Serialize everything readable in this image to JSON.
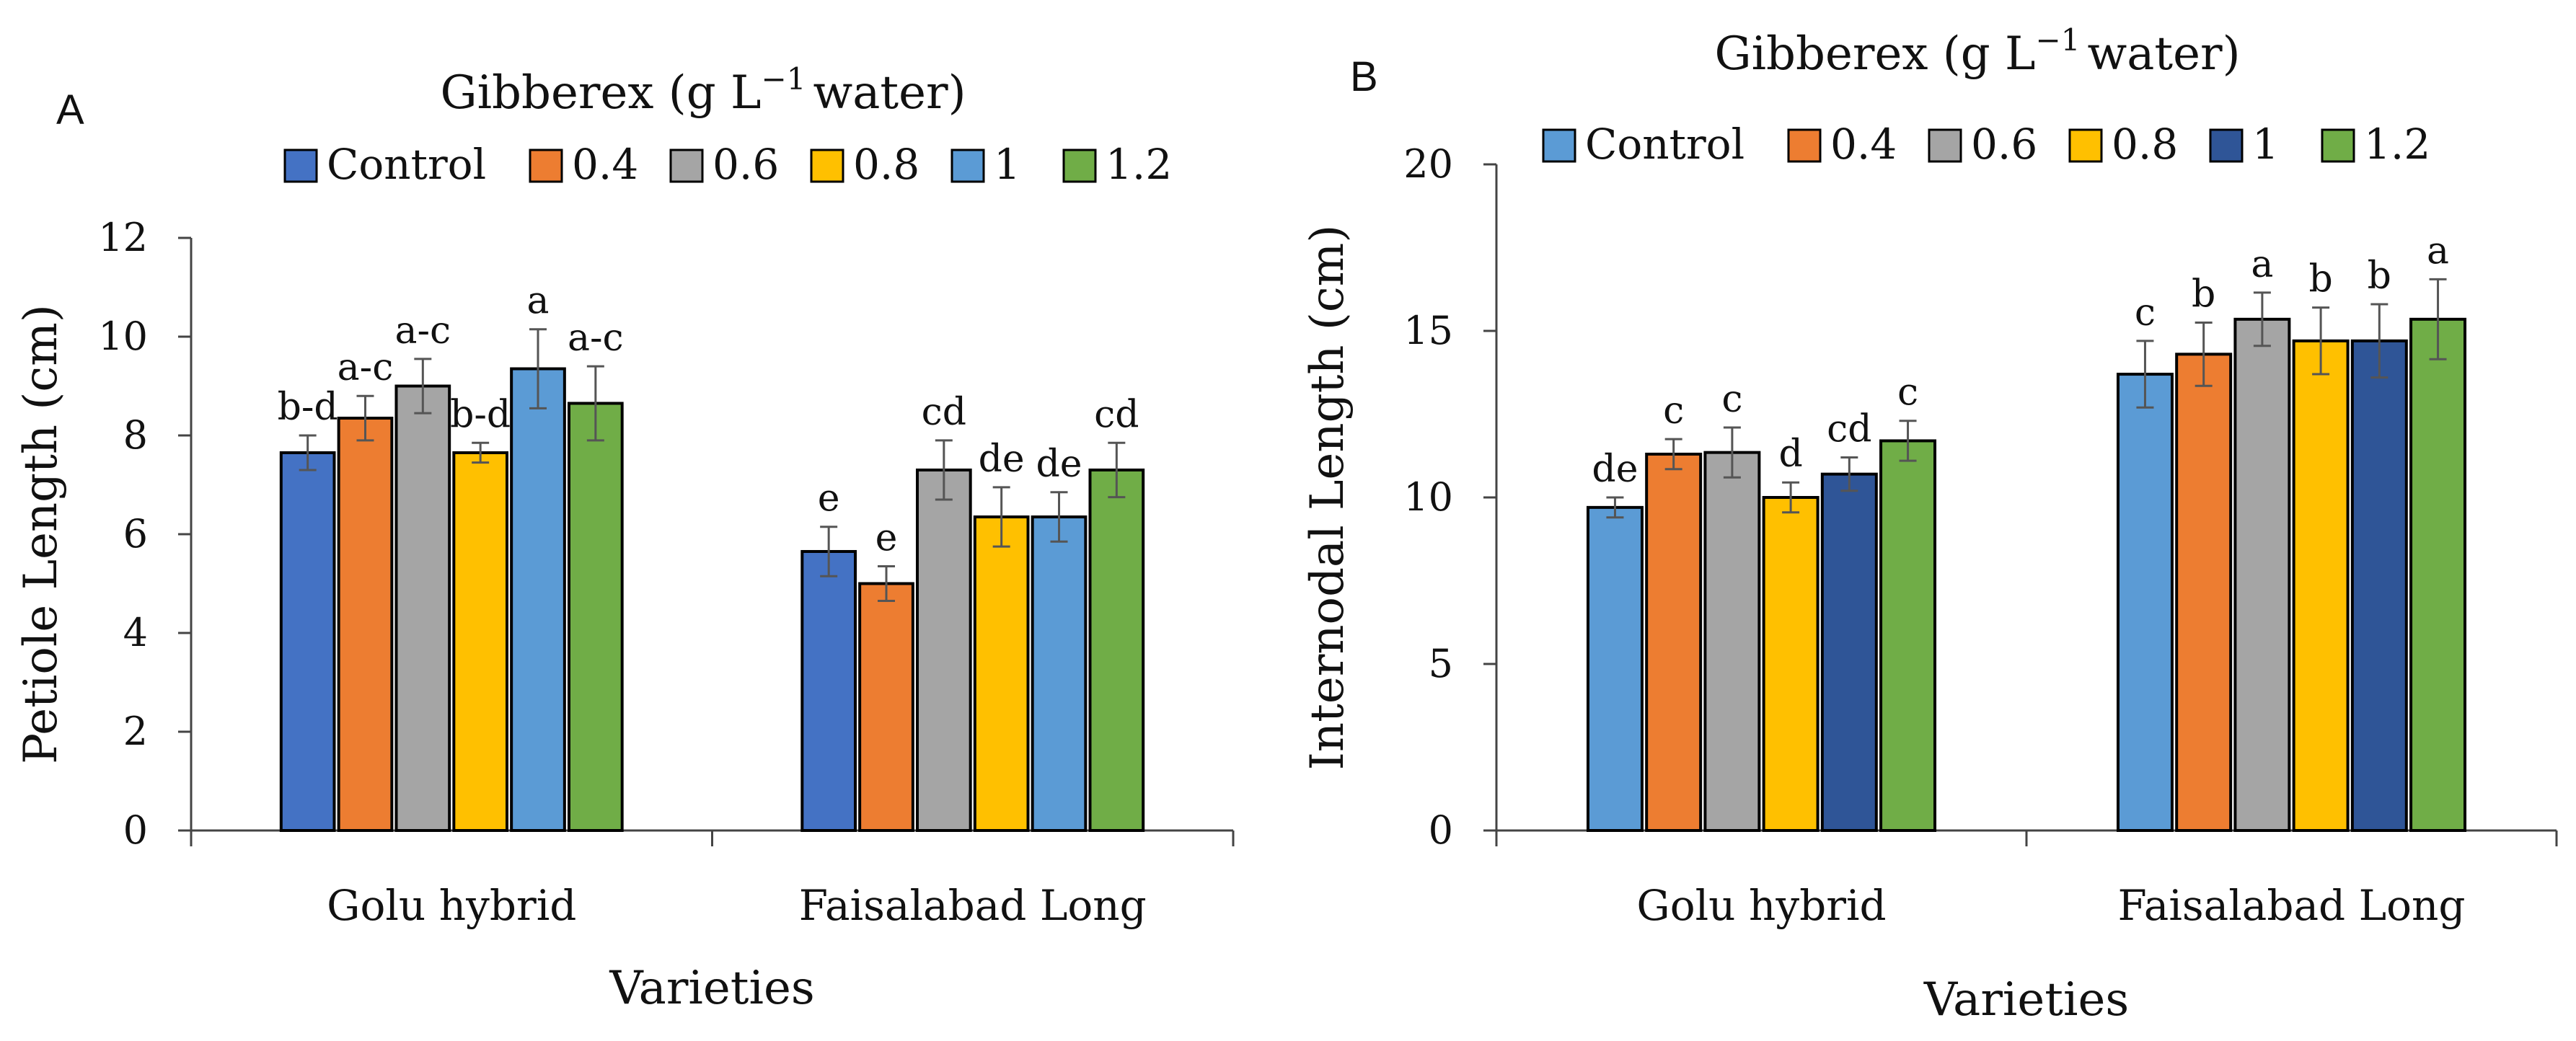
{
  "chart_data": [
    {
      "type": "bar",
      "panel_label": "A",
      "title": "Gibberex (g L",
      "title_sup": "−1",
      "title_suffix": "water)",
      "xlabel": "Varieties",
      "ylabel": "Petiole Length (cm)",
      "ylim": [
        0,
        12
      ],
      "yticks": [
        "0",
        "2",
        "4",
        "6",
        "8",
        "10",
        "12"
      ],
      "grid": false,
      "legend_position": "top",
      "categories": [
        "Golu hybrid",
        "Faisalabad Long"
      ],
      "series": [
        {
          "name": "Control",
          "color": "#4472C4",
          "values": [
            7.65,
            5.65
          ],
          "errors": [
            0.35,
            0.5
          ],
          "letters": [
            "b-d",
            "e"
          ]
        },
        {
          "name": "0.4",
          "color": "#ED7D31",
          "values": [
            8.35,
            5.0
          ],
          "errors": [
            0.45,
            0.35
          ],
          "letters": [
            "a-c",
            "e"
          ]
        },
        {
          "name": "0.6",
          "color": "#A5A5A5",
          "values": [
            9.0,
            7.3
          ],
          "errors": [
            0.55,
            0.6
          ],
          "letters": [
            "a-c",
            "cd"
          ]
        },
        {
          "name": "0.8",
          "color": "#FFC000",
          "values": [
            7.65,
            6.35
          ],
          "errors": [
            0.2,
            0.6
          ],
          "letters": [
            "b-d",
            "de"
          ]
        },
        {
          "name": "1",
          "color": "#5B9BD5",
          "values": [
            9.35,
            6.35
          ],
          "errors": [
            0.8,
            0.5
          ],
          "letters": [
            "a",
            "de"
          ]
        },
        {
          "name": "1.2",
          "color": "#70AD47",
          "values": [
            8.65,
            7.3
          ],
          "errors": [
            0.75,
            0.55
          ],
          "letters": [
            "a-c",
            "cd"
          ]
        }
      ]
    },
    {
      "type": "bar",
      "panel_label": "B",
      "title": "Gibberex (g L",
      "title_sup": "−1",
      "title_suffix": "water)",
      "xlabel": "Varieties",
      "ylabel": "Internodal Length (cm)",
      "ylim": [
        0,
        20
      ],
      "yticks": [
        "0",
        "5",
        "10",
        "15",
        "20"
      ],
      "grid": false,
      "legend_position": "top",
      "categories": [
        "Golu hybrid",
        "Faisalabad Long"
      ],
      "series": [
        {
          "name": "Control",
          "color": "#5B9BD5",
          "values": [
            9.7,
            13.7
          ],
          "errors": [
            0.3,
            1.0
          ],
          "letters": [
            "de",
            "c"
          ]
        },
        {
          "name": "0.4",
          "color": "#ED7D31",
          "values": [
            11.3,
            14.3
          ],
          "errors": [
            0.45,
            0.95
          ],
          "letters": [
            "c",
            "b"
          ]
        },
        {
          "name": "0.6",
          "color": "#A5A5A5",
          "values": [
            11.35,
            15.35
          ],
          "errors": [
            0.75,
            0.8
          ],
          "letters": [
            "c",
            "a"
          ]
        },
        {
          "name": "0.8",
          "color": "#FFC000",
          "values": [
            10.0,
            14.7
          ],
          "errors": [
            0.45,
            1.0
          ],
          "letters": [
            "d",
            "b"
          ]
        },
        {
          "name": "1",
          "color": "#2F5597",
          "values": [
            10.7,
            14.7
          ],
          "errors": [
            0.5,
            1.1
          ],
          "letters": [
            "cd",
            "b"
          ]
        },
        {
          "name": "1.2",
          "color": "#70AD47",
          "values": [
            11.7,
            15.35
          ],
          "errors": [
            0.6,
            1.2
          ],
          "letters": [
            "c",
            "a"
          ]
        }
      ]
    }
  ]
}
